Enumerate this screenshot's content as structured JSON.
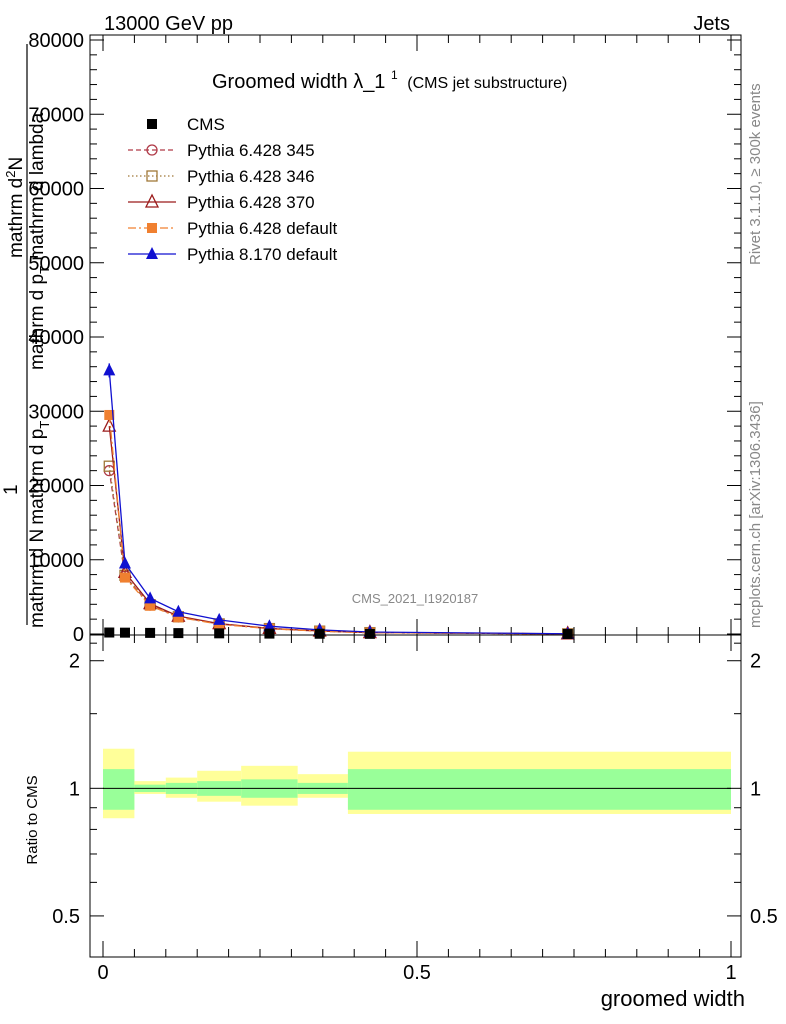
{
  "header": {
    "left": "13000 GeV pp",
    "right": "Jets"
  },
  "side_labels": {
    "rivet": "Rivet 3.1.10, ≥ 300k events",
    "mcplots": "mcplots.cern.ch [arXiv:1306.3436]"
  },
  "watermark": "CMS_2021_I1920187",
  "chart_data": [
    {
      "type": "line",
      "title_main": "Groomed width",
      "title_symbol": "λ_1",
      "title_sup": "1",
      "title_sub": "(CMS jet substructure)",
      "ylabel_parts": [
        "mathrm d",
        "2",
        "N",
        "mathrm d p",
        "T",
        "mathrm d lambda",
        "1",
        "mathrm d N",
        "mathrm d p",
        "T"
      ],
      "ylabel_top": "mathrm d²N",
      "ylabel_mid": "mathrm d p_T mathrm d lambda",
      "ylabel_one": "1",
      "ylabel_bottom": "mathrm d N / mathrm d p_T",
      "xlim": [
        0,
        1
      ],
      "ylim": [
        0,
        80000
      ],
      "y_ticks": [
        0,
        10000,
        20000,
        30000,
        40000,
        50000,
        60000,
        70000,
        80000
      ],
      "y_tick_labels": [
        "0",
        "10000",
        "20000",
        "30000",
        "40000",
        "50000",
        "60000",
        "70000",
        "80000"
      ],
      "legend_position": "top-left",
      "series": [
        {
          "name": "CMS",
          "color": "#000000",
          "marker": "square-filled",
          "line": "none",
          "x": [
            0.01,
            0.035,
            0.075,
            0.12,
            0.185,
            0.265,
            0.345,
            0.425,
            0.74
          ],
          "y": [
            200,
            180,
            150,
            120,
            90,
            55,
            35,
            20,
            5
          ]
        },
        {
          "name": "Pythia 6.428 345",
          "color": "#b03a48",
          "marker": "circle-open",
          "line": "dashed",
          "x": [
            0.01,
            0.035,
            0.075,
            0.12,
            0.185,
            0.265,
            0.345,
            0.425,
            0.74
          ],
          "y": [
            22000,
            7800,
            3900,
            2300,
            1350,
            720,
            380,
            180,
            20
          ]
        },
        {
          "name": "Pythia 6.428 346",
          "color": "#a07838",
          "marker": "square-open",
          "line": "dotted",
          "x": [
            0.01,
            0.035,
            0.075,
            0.12,
            0.185,
            0.265,
            0.345,
            0.425,
            0.74
          ],
          "y": [
            22600,
            7900,
            3950,
            2320,
            1360,
            730,
            385,
            185,
            20
          ]
        },
        {
          "name": "Pythia 6.428 370",
          "color": "#9b1b1b",
          "marker": "triangle-open",
          "line": "solid",
          "x": [
            0.01,
            0.035,
            0.075,
            0.12,
            0.185,
            0.265,
            0.345,
            0.425,
            0.74
          ],
          "y": [
            28000,
            8300,
            4100,
            2400,
            1400,
            760,
            400,
            190,
            22
          ]
        },
        {
          "name": "Pythia 6.428 default",
          "color": "#f08030",
          "marker": "square-filled-small",
          "line": "dashdot",
          "x": [
            0.01,
            0.035,
            0.075,
            0.12,
            0.185,
            0.265,
            0.345,
            0.425,
            0.74
          ],
          "y": [
            29500,
            7600,
            3800,
            2250,
            1320,
            710,
            375,
            180,
            20
          ]
        },
        {
          "name": "Pythia 8.170 default",
          "color": "#1010d0",
          "marker": "triangle-filled",
          "line": "solid",
          "x": [
            0.01,
            0.035,
            0.075,
            0.12,
            0.185,
            0.265,
            0.345,
            0.425,
            0.74
          ],
          "y": [
            35500,
            9500,
            4800,
            3000,
            1900,
            1050,
            560,
            270,
            30
          ]
        }
      ]
    },
    {
      "type": "area",
      "ylabel": "Ratio to CMS",
      "xlabel": "groomed width",
      "xlim": [
        0,
        1
      ],
      "ylim": [
        0.4,
        2.3
      ],
      "log_y": true,
      "y_ticks": [
        0.5,
        1,
        2
      ],
      "y_tick_labels": [
        "0.5",
        "1",
        "2"
      ],
      "x_ticks": [
        0,
        0.5,
        1
      ],
      "x_tick_labels": [
        "0",
        "0.5",
        "1"
      ],
      "bands": {
        "bin_edges": [
          0,
          0.05,
          0.1,
          0.15,
          0.22,
          0.31,
          0.39,
          1.0
        ],
        "green_lo": [
          0.89,
          0.98,
          0.97,
          0.96,
          0.95,
          0.97,
          0.89
        ],
        "green_hi": [
          1.11,
          1.02,
          1.03,
          1.04,
          1.05,
          1.03,
          1.11
        ],
        "yellow_lo": [
          0.85,
          0.97,
          0.95,
          0.93,
          0.91,
          0.95,
          0.87
        ],
        "yellow_hi": [
          1.24,
          1.04,
          1.06,
          1.1,
          1.13,
          1.08,
          1.22
        ],
        "green_color": "#99ff99",
        "yellow_color": "#ffff99"
      },
      "reference_line": 1
    }
  ]
}
